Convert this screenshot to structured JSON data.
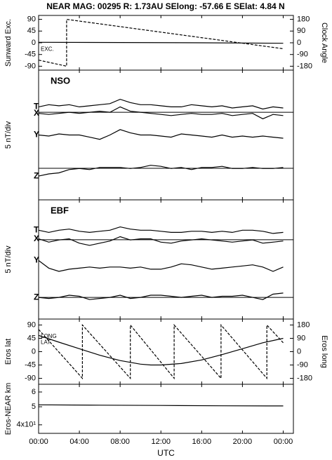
{
  "chart_data": [
    {
      "type": "line",
      "title": "NEAR MAG: 00295  R: 1.73AU  SElong:  -57.66 E  SElat:    4.84 N",
      "ylabel": "Sunward Exc.",
      "y2label": "Clock Angle",
      "xlim": [
        0,
        25
      ],
      "ylim": [
        -105,
        105
      ],
      "yticks": [
        90,
        45,
        0,
        -45,
        -90
      ],
      "y2lim": [
        -210,
        210
      ],
      "y2ticks": [
        180,
        90,
        0,
        -90,
        -180
      ],
      "series": [
        {
          "name": "EXC.",
          "color": "#000000",
          "x": [
            0,
            8,
            16,
            24
          ],
          "values": [
            2,
            1,
            0,
            -2
          ]
        },
        {
          "color": "#000000",
          "dash": true,
          "axis": "y2",
          "x": [
            0,
            2.75,
            2.75,
            24
          ],
          "values": [
            -133,
            -180,
            180,
            -46
          ]
        }
      ]
    },
    {
      "type": "line",
      "panel_label": "NSO",
      "ylabel": "5 nT/div",
      "xlim": [
        0,
        25
      ],
      "ylim": [
        0,
        60
      ],
      "reference_lines": [
        40.5,
        14.6
      ],
      "x": [
        0,
        1,
        2,
        3,
        4,
        5,
        6,
        7,
        8,
        9,
        10,
        11,
        12,
        13,
        14,
        15,
        16,
        17,
        18,
        19,
        20,
        21,
        22,
        23,
        24
      ],
      "series": [
        {
          "name": "T",
          "color": "#000000",
          "values": [
            43,
            44,
            43.5,
            44,
            43,
            43.5,
            44,
            44.5,
            46.5,
            45,
            44,
            44,
            43.5,
            43,
            43,
            44,
            43.5,
            43,
            43.5,
            42.5,
            43,
            43.5,
            42,
            43,
            42.5
          ]
        },
        {
          "name": "X",
          "color": "#000000",
          "values": [
            40,
            39.5,
            40,
            40.5,
            40,
            40.5,
            41,
            40.5,
            43,
            41,
            40.5,
            40,
            39.5,
            39,
            39.5,
            40,
            39.5,
            39.5,
            40,
            39,
            39.5,
            40,
            37.5,
            39.5,
            39
          ]
        },
        {
          "name": "Y",
          "color": "#000000",
          "values": [
            30,
            29.5,
            30.5,
            30,
            30,
            29,
            28,
            30,
            32.5,
            31,
            30,
            30,
            29.5,
            29,
            30.5,
            30,
            29.5,
            29,
            30,
            29,
            29.5,
            29,
            29.5,
            29,
            28.5
          ]
        },
        {
          "name": "Z",
          "color": "#000000",
          "values": [
            11,
            12,
            12.5,
            14,
            14.5,
            14,
            15,
            15,
            15,
            14.5,
            15,
            16,
            15.5,
            14.5,
            15,
            14,
            15,
            15,
            15.5,
            14.5,
            14.5,
            15,
            14.5,
            14.5,
            15
          ]
        }
      ]
    },
    {
      "type": "line",
      "panel_label": "EBF",
      "ylabel": "5 nT/div",
      "xlim": [
        0,
        25
      ],
      "ylim": [
        0,
        55
      ],
      "reference_lines": [
        36.6,
        10
      ],
      "x": [
        0,
        1,
        2,
        3,
        4,
        5,
        6,
        7,
        8,
        9,
        10,
        11,
        12,
        13,
        14,
        15,
        16,
        17,
        18,
        19,
        20,
        21,
        22,
        23,
        24
      ],
      "series": [
        {
          "name": "T",
          "color": "#000000",
          "values": [
            41,
            40,
            41,
            41.5,
            40.5,
            40,
            40.5,
            41,
            42.5,
            41.5,
            41,
            41,
            40.5,
            40,
            40,
            40.5,
            40.5,
            40,
            40.5,
            40,
            41,
            41,
            40.5,
            39.5,
            40
          ]
        },
        {
          "name": "X",
          "color": "#000000",
          "values": [
            37,
            35.5,
            36.5,
            37,
            35,
            34,
            35,
            36,
            38,
            36.5,
            37,
            37,
            35.5,
            35,
            36,
            36.5,
            37,
            36.5,
            36,
            35.5,
            36,
            36.5,
            35,
            35.5,
            36
          ]
        },
        {
          "name": "Y",
          "color": "#000000",
          "values": [
            27,
            23.5,
            22,
            23,
            23.5,
            24,
            23.5,
            24,
            24,
            23.5,
            24,
            23,
            23,
            24,
            25.5,
            25,
            24,
            23,
            23.5,
            24,
            24.5,
            25,
            24,
            22,
            24
          ]
        },
        {
          "name": "Z",
          "color": "#000000",
          "values": [
            10,
            9.5,
            10,
            11,
            10.5,
            9,
            9.5,
            10,
            11,
            9.5,
            10,
            11,
            11,
            10.5,
            10,
            10.5,
            11,
            10,
            10.5,
            10.5,
            11,
            10,
            9,
            11.5,
            12
          ]
        }
      ]
    },
    {
      "type": "line",
      "ylabel": "Eros lat",
      "y2label": "Eros long",
      "xlim": [
        0,
        25
      ],
      "ylim": [
        -110,
        110
      ],
      "yticks": [
        90,
        45,
        0,
        -45,
        -90
      ],
      "y2lim": [
        -220,
        220
      ],
      "y2ticks": [
        180,
        90,
        0,
        -90,
        -180
      ],
      "series": [
        {
          "name": "LONG",
          "color": "#000000",
          "dash": true,
          "axis": "y2",
          "x": [
            0,
            4.3,
            4.3,
            9.0,
            9.0,
            13.3,
            13.3,
            17.9,
            17.9,
            22.4,
            22.4,
            24
          ],
          "values": [
            150,
            -180,
            180,
            -180,
            180,
            -180,
            180,
            -180,
            180,
            -180,
            180,
            60
          ]
        },
        {
          "name": "LAT",
          "color": "#000000",
          "x": [
            0,
            2,
            4,
            6,
            8,
            10,
            11,
            12,
            14,
            16,
            18,
            20,
            22,
            24
          ],
          "values": [
            55,
            32,
            10,
            -12,
            -30,
            -42,
            -45,
            -45,
            -40,
            -28,
            -10,
            10,
            30,
            45
          ]
        }
      ]
    },
    {
      "type": "line",
      "ylabel": "Eros-NEAR km",
      "xlabel": "UTC",
      "ylog": true,
      "xlim": [
        0,
        25
      ],
      "ylim": [
        36,
        66
      ],
      "yticks": [
        {
          "value": 60,
          "label": "6"
        },
        {
          "value": 50,
          "label": "5"
        },
        {
          "value": 40,
          "label": "4x10¹"
        }
      ],
      "xticks": [
        {
          "value": 0,
          "label": "00:00"
        },
        {
          "value": 4,
          "label": "04:00"
        },
        {
          "value": 8,
          "label": "08:00"
        },
        {
          "value": 12,
          "label": "12:00"
        },
        {
          "value": 16,
          "label": "16:00"
        },
        {
          "value": 20,
          "label": "20:00"
        },
        {
          "value": 24,
          "label": "00:00"
        }
      ],
      "series": [
        {
          "color": "#000000",
          "x": [
            0,
            6,
            12,
            18,
            24
          ],
          "values": [
            51.2,
            51.0,
            50.8,
            50.6,
            50.5
          ]
        }
      ]
    }
  ]
}
